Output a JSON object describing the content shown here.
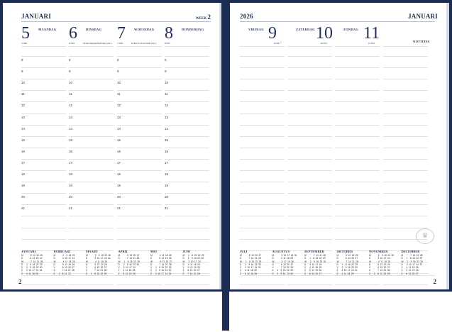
{
  "left_page": {
    "month": "JANUARI",
    "week_label": "WEEK",
    "week_number": "2",
    "page_number": "2",
    "days": [
      {
        "number": "5",
        "name": "MAANDAG",
        "sub": "5/360",
        "note": ""
      },
      {
        "number": "6",
        "name": "DINSDAG",
        "sub": "6/359",
        "note": "Driekoningen/Epifanie (chr.)"
      },
      {
        "number": "7",
        "name": "WOENSDAG",
        "sub": "7/358",
        "note": "Orthodox Kerstmis (chr.)"
      },
      {
        "number": "8",
        "name": "DONDERDAG",
        "sub": "8/357",
        "note": ""
      }
    ],
    "mini_months": [
      "JANUARI",
      "FEBRUARI",
      "MAART",
      "APRIL",
      "MEI",
      "JUNI"
    ]
  },
  "right_page": {
    "year": "2026",
    "month": "JANUARI",
    "notes_label": "NOTITIES",
    "page_number": "2",
    "days": [
      {
        "number": "9",
        "name": "VRIJDAG",
        "sub": "9/356",
        "note": "☾"
      },
      {
        "number": "10",
        "name": "ZATERDAG",
        "sub": "10/355",
        "note": ""
      },
      {
        "number": "11",
        "name": "ZONDAG",
        "sub": "11/354",
        "note": ""
      }
    ],
    "mini_months": [
      "JULI",
      "AUGUSTUS",
      "SEPTEMBER",
      "OKTOBER",
      "NOVEMBER",
      "DECEMBER"
    ]
  },
  "hours": [
    "8",
    "9",
    "10",
    "11",
    "12",
    "13",
    "14",
    "15",
    "16",
    "17",
    "18",
    "19",
    "20",
    "21"
  ],
  "weekday_letters": [
    "M",
    "D",
    "W",
    "D",
    "V",
    "Z",
    "Z"
  ],
  "calendar_year": 2026,
  "colors": {
    "navy": "#1c2d55",
    "text": "#1f2f5c"
  }
}
